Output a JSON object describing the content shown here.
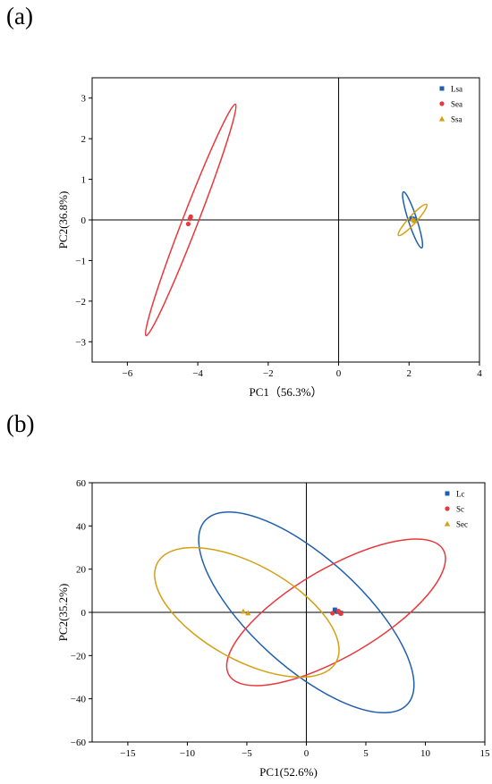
{
  "panels": [
    {
      "label": "(a)",
      "chart_data": {
        "type": "scatter",
        "xlabel": "PC1（56.3%）",
        "ylabel": "PC2(36.8%)",
        "xlim": [
          -7.0,
          4.0
        ],
        "ylim": [
          -3.5,
          3.5
        ],
        "xticks": [
          -6,
          -4,
          -2,
          0,
          2,
          4
        ],
        "yticks": [
          -3,
          -2,
          -1,
          0,
          1,
          2,
          3
        ],
        "reference_lines": {
          "x": 0,
          "y": 0
        },
        "legend_position": "top-right",
        "series": [
          {
            "name": "Lsa",
            "marker": "square",
            "color": "#1f5fae",
            "points": [
              [
                2.08,
                0.03
              ],
              [
                2.12,
                0.02
              ]
            ],
            "ellipse": {
              "center": [
                2.1,
                0.0
              ],
              "endpoints": [
                [
                  1.84,
                  0.69
                ],
                [
                  2.36,
                  -0.69
                ]
              ],
              "semi_minor": 0.12
            }
          },
          {
            "name": "Sea",
            "marker": "circle",
            "color": "#e8383d",
            "points": [
              [
                -4.2,
                0.08
              ],
              [
                -4.22,
                0.03
              ],
              [
                -4.27,
                -0.1
              ]
            ],
            "ellipse": {
              "center": [
                -4.2,
                0.0
              ],
              "endpoints": [
                [
                  -2.93,
                  2.85
                ],
                [
                  -5.47,
                  -2.85
                ]
              ],
              "semi_minor": 0.22
            }
          },
          {
            "name": "Ssa",
            "marker": "triangle",
            "color": "#d4a015",
            "points": [
              [
                2.1,
                0.02
              ],
              [
                2.15,
                -0.02
              ]
            ],
            "ellipse": {
              "center": [
                2.1,
                0.0
              ],
              "endpoints": [
                [
                  2.5,
                  0.38
                ],
                [
                  1.7,
                  -0.38
                ]
              ],
              "semi_minor": 0.11
            }
          }
        ]
      }
    },
    {
      "label": "(b)",
      "chart_data": {
        "type": "scatter",
        "xlabel": "PC1(52.6%)",
        "ylabel": "PC2(35.2%)",
        "xlim": [
          -18.0,
          15.0
        ],
        "ylim": [
          -60.0,
          60.0
        ],
        "xticks": [
          -15,
          -10,
          -5,
          0,
          5,
          10,
          15
        ],
        "yticks": [
          -60,
          -40,
          -20,
          0,
          20,
          40,
          60
        ],
        "reference_lines": {
          "x": 0,
          "y": 0
        },
        "legend_position": "top-right",
        "series": [
          {
            "name": "Lc",
            "marker": "square",
            "color": "#1f5fae",
            "points": [
              [
                2.4,
                1.2
              ],
              [
                2.9,
                -0.3
              ],
              [
                2.6,
                0.3
              ]
            ],
            "ellipse": {
              "center": [
                0.0,
                0.0
              ],
              "endpoints": [
                [
                  -6.0,
                  43.0
                ],
                [
                  11.0,
                  -42.0
                ]
              ],
              "semi_minor": 4.6
            }
          },
          {
            "name": "Sc",
            "marker": "circle",
            "color": "#e8383d",
            "points": [
              [
                2.2,
                -0.4
              ],
              [
                2.7,
                0.6
              ],
              [
                2.9,
                -0.6
              ]
            ],
            "ellipse": {
              "center": [
                2.5,
                0.0
              ],
              "endpoints": [
                [
                  11.5,
                  29.0
                ],
                [
                  -6.5,
                  -29.0
                ]
              ],
              "semi_minor": 3.7
            }
          },
          {
            "name": "Sec",
            "marker": "triangle",
            "color": "#d4a015",
            "points": [
              [
                -5.3,
                0.5
              ],
              [
                -4.9,
                -0.3
              ]
            ],
            "ellipse": {
              "center": [
                -5.0,
                0.0
              ],
              "endpoints": [
                [
                  -12.5,
                  23.0
                ],
                [
                  2.5,
                  -23.0
                ]
              ],
              "semi_minor": 4.0
            }
          }
        ]
      }
    }
  ]
}
